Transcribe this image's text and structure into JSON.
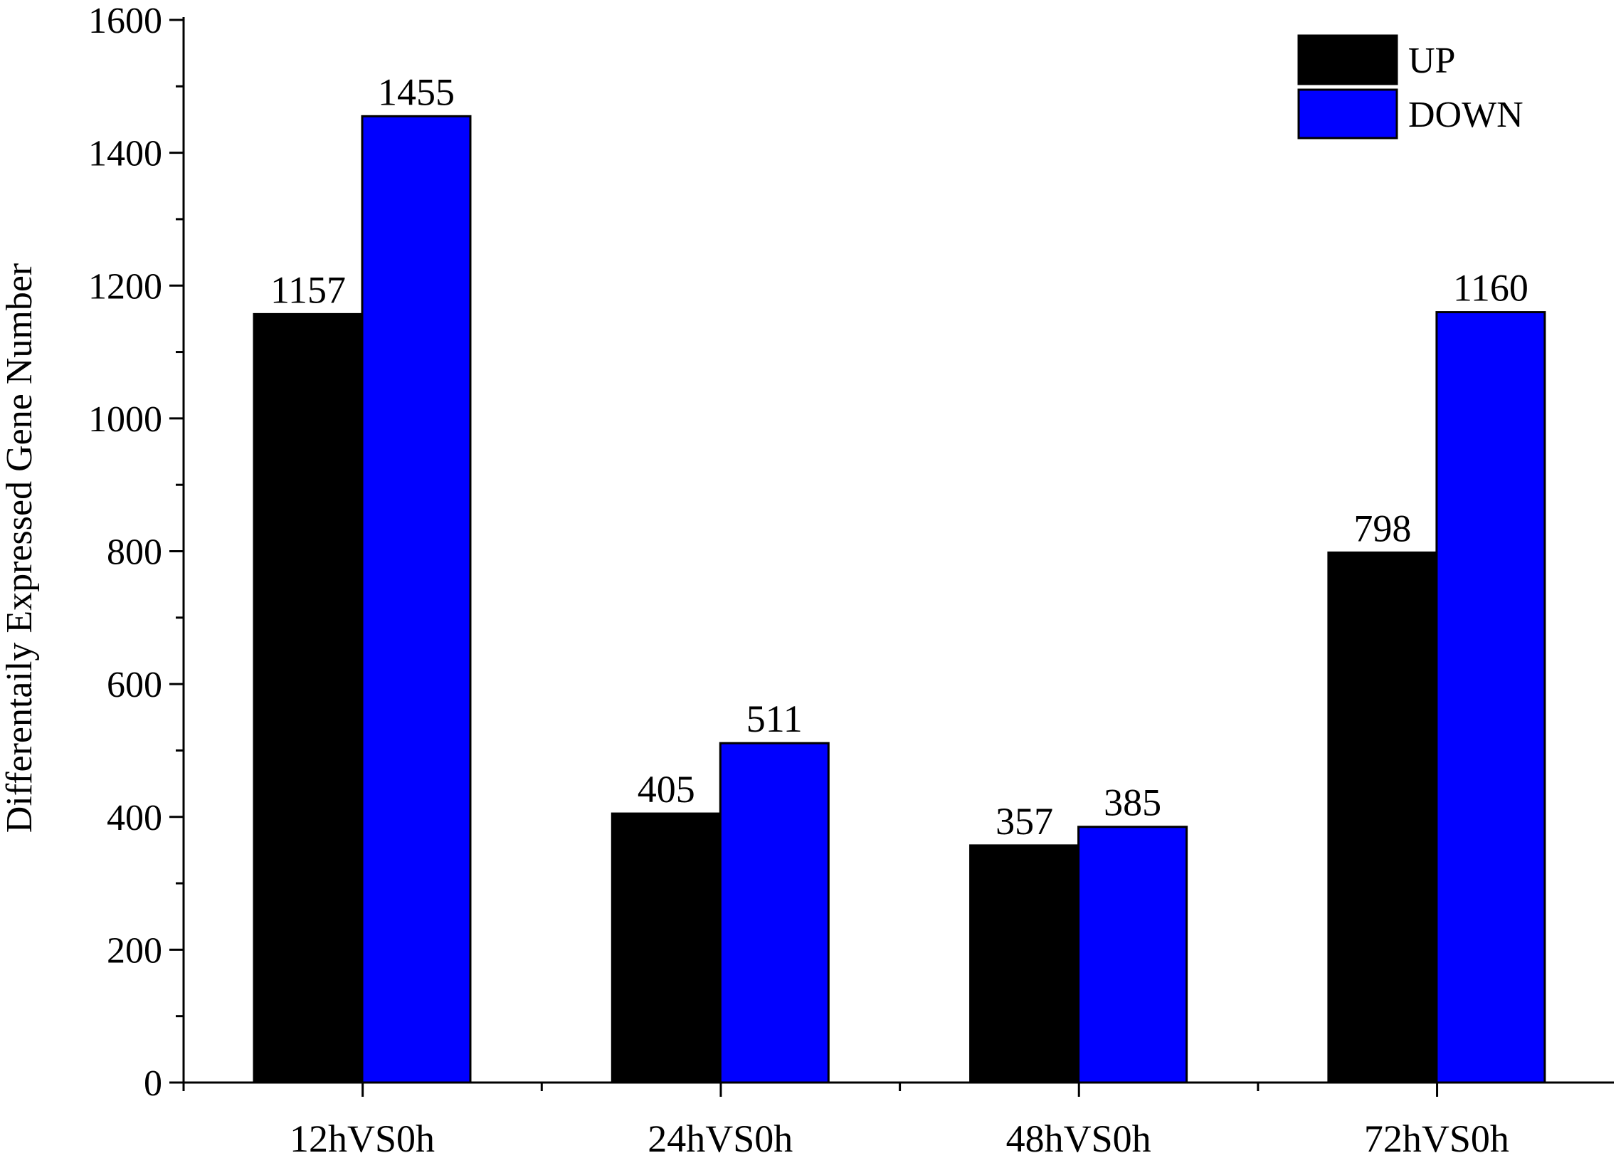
{
  "chart_data": {
    "type": "bar",
    "title": "",
    "xlabel": "",
    "ylabel": "Differentaily Expressed Gene Number",
    "categories": [
      "12hVS0h",
      "24hVS0h",
      "48hVS0h",
      "72hVS0h"
    ],
    "series": [
      {
        "name": "UP",
        "color": "#000000",
        "values": [
          1157,
          405,
          357,
          798
        ]
      },
      {
        "name": "DOWN",
        "color": "#0000ff",
        "values": [
          1455,
          511,
          385,
          1160
        ]
      }
    ],
    "ylim": [
      0,
      1600
    ],
    "yticks": [
      0,
      200,
      400,
      600,
      800,
      1000,
      1200,
      1400,
      1600
    ],
    "ytick_labels": [
      "0",
      "200",
      "400",
      "600",
      "800",
      "1000",
      "1200",
      "1400",
      "1600"
    ],
    "grid": false,
    "legend_position": "top-right",
    "data_labels": true
  }
}
